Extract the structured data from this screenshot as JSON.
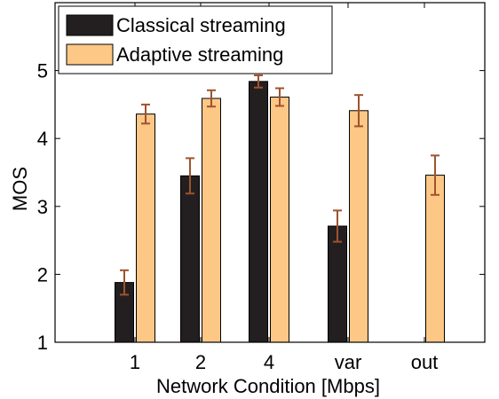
{
  "chart_data": {
    "type": "bar",
    "title": "",
    "xlabel": "Network Condition [Mbps]",
    "ylabel": "MOS",
    "categories": [
      "1",
      "2",
      "4",
      "var",
      "out"
    ],
    "ylim": [
      1,
      6
    ],
    "yticks": [
      1,
      2,
      3,
      4,
      5
    ],
    "grid": false,
    "legend_position": "top-left",
    "series": [
      {
        "name": "Classical streaming",
        "color": "#231f20",
        "values": [
          1.88,
          3.45,
          4.84,
          2.71,
          null
        ],
        "error": [
          0.18,
          0.26,
          0.09,
          0.23,
          null
        ]
      },
      {
        "name": "Adaptive streaming",
        "color": "#fdc786",
        "values": [
          4.36,
          4.59,
          4.61,
          4.41,
          3.46
        ],
        "error": [
          0.14,
          0.12,
          0.13,
          0.23,
          0.29
        ]
      }
    ],
    "error_bar_color": "#a0522d"
  }
}
